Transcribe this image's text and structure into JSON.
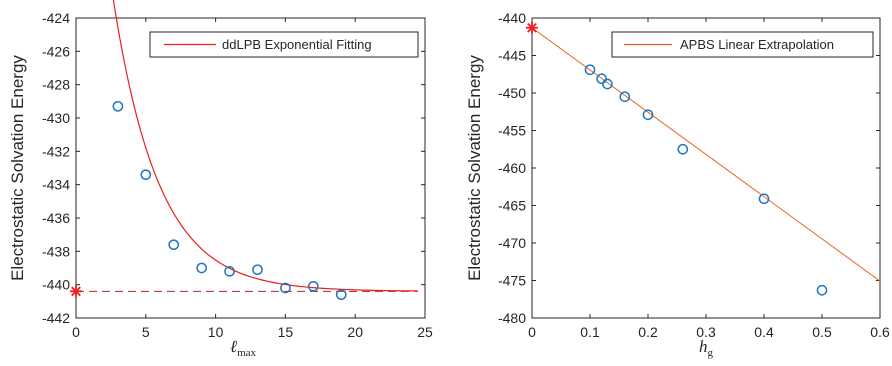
{
  "chart_data": [
    {
      "type": "scatter",
      "ylabel": "Electrostatic Solvation Energy",
      "xlabel_main": "ℓ",
      "xlabel_sub": "max",
      "xlim": [
        0,
        25
      ],
      "ylim": [
        -442,
        -424
      ],
      "xticks": [
        "0",
        "5",
        "10",
        "15",
        "20",
        "25"
      ],
      "yticks": [
        "-442",
        "-440",
        "-438",
        "-436",
        "-434",
        "-432",
        "-430",
        "-428",
        "-426",
        "-424"
      ],
      "legend": "ddLPB Exponential Fitting",
      "legend_position": "top-right",
      "points": {
        "x": [
          3,
          5,
          7,
          9,
          11,
          13,
          15,
          17,
          19
        ],
        "y": [
          -429.3,
          -433.4,
          -437.6,
          -439.0,
          -439.2,
          -439.1,
          -440.2,
          -440.1,
          -440.6
        ]
      },
      "fit": {
        "a": -440.4,
        "b": 21.5,
        "c": 0.305,
        "x_start": 2,
        "x_end": 24.5
      },
      "asymptote": {
        "y": -440.4,
        "x_start": 0,
        "x_end": 24.5
      },
      "extrapolated_point": {
        "x": 0,
        "y": -440.4
      },
      "colors": {
        "points": "#1f77c4",
        "fit": "#e8201e",
        "star": "#e8201e",
        "dashed": "#b5242a"
      }
    },
    {
      "type": "scatter",
      "ylabel": "Electrostatic Solvation Energy",
      "xlabel_main": "h",
      "xlabel_sub": "g",
      "xlim": [
        0,
        0.6
      ],
      "ylim": [
        -480,
        -440
      ],
      "xticks": [
        "0",
        "0.1",
        "0.2",
        "0.3",
        "0.4",
        "0.5",
        "0.6"
      ],
      "yticks": [
        "-480",
        "-475",
        "-470",
        "-465",
        "-460",
        "-455",
        "-450",
        "-445",
        "-440"
      ],
      "legend": "APBS Linear Extrapolation",
      "legend_position": "top-right",
      "points": {
        "x": [
          0.1,
          0.12,
          0.13,
          0.16,
          0.2,
          0.26,
          0.4,
          0.5
        ],
        "y": [
          -446.9,
          -448.1,
          -448.8,
          -450.5,
          -452.9,
          -457.5,
          -464.1,
          -476.3
        ]
      },
      "line": {
        "intercept": -441.3,
        "slope": -56.3,
        "x_start": 0,
        "x_end": 0.6
      },
      "extrapolated_point": {
        "x": 0,
        "y": -441.3
      },
      "colors": {
        "points": "#1f77c4",
        "line": "#e8641e",
        "star": "#e8201e"
      }
    }
  ]
}
